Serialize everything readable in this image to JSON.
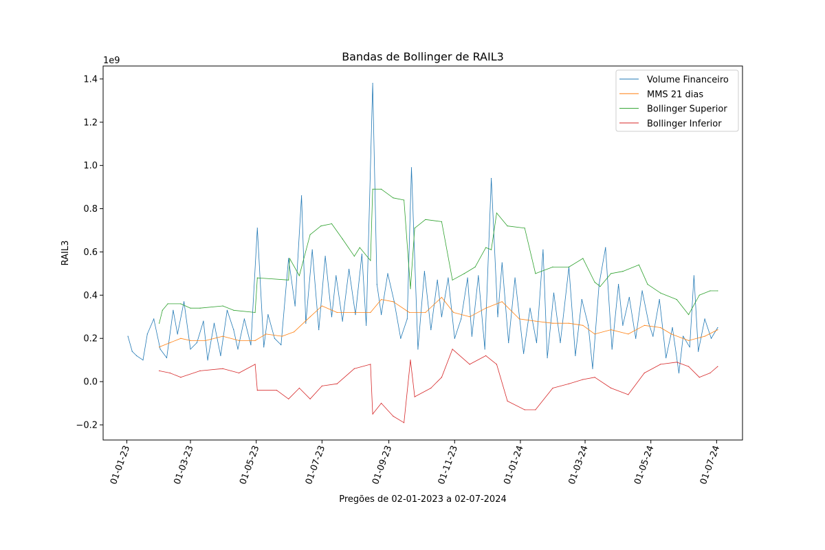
{
  "chart_data": {
    "type": "line",
    "title": "Bandas de Bollinger de RAIL3",
    "xlabel": "Pregões de 02-01-2023 a 02-07-2024",
    "ylabel": "RAIL3",
    "y_offset_label": "1e9",
    "y_multiplier": 1000000000,
    "x_start": "2023-01-02",
    "x_end": "2024-07-02",
    "xlim": [
      "2022-12-10",
      "2024-07-25"
    ],
    "ylim": [
      -0.27,
      1.46
    ],
    "y_ticks": [
      -0.2,
      0.0,
      0.2,
      0.4,
      0.6,
      0.8,
      1.0,
      1.2,
      1.4
    ],
    "y_tick_labels": [
      "−0.2",
      "0.0",
      "0.2",
      "0.4",
      "0.6",
      "0.8",
      "1.0",
      "1.2",
      "1.4"
    ],
    "x_ticks": [
      "2023-01-01",
      "2023-03-01",
      "2023-05-01",
      "2023-07-01",
      "2023-09-01",
      "2023-11-01",
      "2024-01-01",
      "2024-03-01",
      "2024-05-01",
      "2024-07-01"
    ],
    "x_tick_labels": [
      "01-01-23",
      "01-03-23",
      "01-05-23",
      "01-07-23",
      "01-09-23",
      "01-11-23",
      "01-01-24",
      "01-03-24",
      "01-05-24",
      "01-07-24"
    ],
    "legend_position": "top-right",
    "grid": false,
    "series": [
      {
        "name": "Volume Financeiro",
        "color": "#1f77b4",
        "points": [
          [
            "2023-01-02",
            0.21
          ],
          [
            "2023-01-06",
            0.14
          ],
          [
            "2023-01-10",
            0.12
          ],
          [
            "2023-01-16",
            0.1
          ],
          [
            "2023-01-20",
            0.22
          ],
          [
            "2023-01-26",
            0.29
          ],
          [
            "2023-02-01",
            0.15
          ],
          [
            "2023-02-07",
            0.11
          ],
          [
            "2023-02-13",
            0.33
          ],
          [
            "2023-02-17",
            0.22
          ],
          [
            "2023-02-23",
            0.37
          ],
          [
            "2023-03-01",
            0.15
          ],
          [
            "2023-03-07",
            0.18
          ],
          [
            "2023-03-13",
            0.28
          ],
          [
            "2023-03-17",
            0.1
          ],
          [
            "2023-03-23",
            0.27
          ],
          [
            "2023-03-29",
            0.12
          ],
          [
            "2023-04-04",
            0.33
          ],
          [
            "2023-04-10",
            0.24
          ],
          [
            "2023-04-14",
            0.15
          ],
          [
            "2023-04-20",
            0.29
          ],
          [
            "2023-04-26",
            0.17
          ],
          [
            "2023-05-02",
            0.71
          ],
          [
            "2023-05-08",
            0.16
          ],
          [
            "2023-05-12",
            0.31
          ],
          [
            "2023-05-18",
            0.2
          ],
          [
            "2023-05-24",
            0.17
          ],
          [
            "2023-05-31",
            0.57
          ],
          [
            "2023-06-06",
            0.35
          ],
          [
            "2023-06-12",
            0.86
          ],
          [
            "2023-06-16",
            0.27
          ],
          [
            "2023-06-22",
            0.61
          ],
          [
            "2023-06-28",
            0.24
          ],
          [
            "2023-07-04",
            0.58
          ],
          [
            "2023-07-10",
            0.3
          ],
          [
            "2023-07-14",
            0.49
          ],
          [
            "2023-07-20",
            0.28
          ],
          [
            "2023-07-26",
            0.52
          ],
          [
            "2023-08-01",
            0.31
          ],
          [
            "2023-08-07",
            0.59
          ],
          [
            "2023-08-11",
            0.26
          ],
          [
            "2023-08-17",
            1.38
          ],
          [
            "2023-08-21",
            0.45
          ],
          [
            "2023-08-25",
            0.31
          ],
          [
            "2023-08-31",
            0.5
          ],
          [
            "2023-09-06",
            0.37
          ],
          [
            "2023-09-12",
            0.2
          ],
          [
            "2023-09-18",
            0.29
          ],
          [
            "2023-09-22",
            0.99
          ],
          [
            "2023-09-28",
            0.15
          ],
          [
            "2023-10-04",
            0.51
          ],
          [
            "2023-10-10",
            0.24
          ],
          [
            "2023-10-16",
            0.47
          ],
          [
            "2023-10-20",
            0.3
          ],
          [
            "2023-10-26",
            0.48
          ],
          [
            "2023-11-01",
            0.2
          ],
          [
            "2023-11-07",
            0.29
          ],
          [
            "2023-11-13",
            0.48
          ],
          [
            "2023-11-17",
            0.21
          ],
          [
            "2023-11-23",
            0.49
          ],
          [
            "2023-11-29",
            0.15
          ],
          [
            "2023-12-05",
            0.94
          ],
          [
            "2023-12-11",
            0.3
          ],
          [
            "2023-12-15",
            0.55
          ],
          [
            "2023-12-21",
            0.18
          ],
          [
            "2023-12-27",
            0.48
          ],
          [
            "2024-01-04",
            0.13
          ],
          [
            "2024-01-10",
            0.34
          ],
          [
            "2024-01-16",
            0.18
          ],
          [
            "2024-01-22",
            0.61
          ],
          [
            "2024-01-26",
            0.11
          ],
          [
            "2024-02-01",
            0.41
          ],
          [
            "2024-02-07",
            0.18
          ],
          [
            "2024-02-15",
            0.53
          ],
          [
            "2024-02-21",
            0.12
          ],
          [
            "2024-02-27",
            0.38
          ],
          [
            "2024-03-04",
            0.26
          ],
          [
            "2024-03-08",
            0.06
          ],
          [
            "2024-03-14",
            0.45
          ],
          [
            "2024-03-20",
            0.62
          ],
          [
            "2024-03-26",
            0.15
          ],
          [
            "2024-04-01",
            0.45
          ],
          [
            "2024-04-05",
            0.26
          ],
          [
            "2024-04-11",
            0.39
          ],
          [
            "2024-04-17",
            0.2
          ],
          [
            "2024-04-23",
            0.42
          ],
          [
            "2024-04-29",
            0.27
          ],
          [
            "2024-05-03",
            0.21
          ],
          [
            "2024-05-09",
            0.38
          ],
          [
            "2024-05-15",
            0.11
          ],
          [
            "2024-05-21",
            0.25
          ],
          [
            "2024-05-27",
            0.04
          ],
          [
            "2024-05-31",
            0.21
          ],
          [
            "2024-06-06",
            0.16
          ],
          [
            "2024-06-10",
            0.49
          ],
          [
            "2024-06-14",
            0.14
          ],
          [
            "2024-06-20",
            0.29
          ],
          [
            "2024-06-26",
            0.2
          ],
          [
            "2024-07-02",
            0.25
          ]
        ]
      },
      {
        "name": "MMS 21 dias",
        "color": "#ff7f0e",
        "points": [
          [
            "2023-01-31",
            0.16
          ],
          [
            "2023-02-10",
            0.18
          ],
          [
            "2023-02-20",
            0.2
          ],
          [
            "2023-03-01",
            0.19
          ],
          [
            "2023-03-15",
            0.19
          ],
          [
            "2023-03-31",
            0.21
          ],
          [
            "2023-04-15",
            0.19
          ],
          [
            "2023-04-30",
            0.19
          ],
          [
            "2023-05-10",
            0.22
          ],
          [
            "2023-05-25",
            0.21
          ],
          [
            "2023-06-05",
            0.23
          ],
          [
            "2023-06-20",
            0.3
          ],
          [
            "2023-07-01",
            0.35
          ],
          [
            "2023-07-15",
            0.32
          ],
          [
            "2023-07-31",
            0.32
          ],
          [
            "2023-08-15",
            0.32
          ],
          [
            "2023-08-25",
            0.38
          ],
          [
            "2023-09-05",
            0.37
          ],
          [
            "2023-09-20",
            0.32
          ],
          [
            "2023-10-05",
            0.32
          ],
          [
            "2023-10-20",
            0.39
          ],
          [
            "2023-10-31",
            0.32
          ],
          [
            "2023-11-15",
            0.3
          ],
          [
            "2023-11-30",
            0.34
          ],
          [
            "2023-12-15",
            0.37
          ],
          [
            "2023-12-31",
            0.29
          ],
          [
            "2024-01-15",
            0.28
          ],
          [
            "2024-01-31",
            0.27
          ],
          [
            "2024-02-15",
            0.27
          ],
          [
            "2024-02-28",
            0.26
          ],
          [
            "2024-03-10",
            0.22
          ],
          [
            "2024-03-25",
            0.24
          ],
          [
            "2024-04-10",
            0.22
          ],
          [
            "2024-04-25",
            0.26
          ],
          [
            "2024-05-10",
            0.25
          ],
          [
            "2024-05-20",
            0.22
          ],
          [
            "2024-06-05",
            0.19
          ],
          [
            "2024-06-20",
            0.21
          ],
          [
            "2024-07-02",
            0.24
          ]
        ]
      },
      {
        "name": "Bollinger Superior",
        "color": "#2ca02c",
        "points": [
          [
            "2023-01-31",
            0.27
          ],
          [
            "2023-02-03",
            0.33
          ],
          [
            "2023-02-08",
            0.36
          ],
          [
            "2023-02-20",
            0.36
          ],
          [
            "2023-03-01",
            0.34
          ],
          [
            "2023-03-10",
            0.34
          ],
          [
            "2023-03-31",
            0.35
          ],
          [
            "2023-04-10",
            0.33
          ],
          [
            "2023-04-30",
            0.32
          ],
          [
            "2023-05-02",
            0.48
          ],
          [
            "2023-05-31",
            0.47
          ],
          [
            "2023-06-01",
            0.57
          ],
          [
            "2023-06-10",
            0.49
          ],
          [
            "2023-06-20",
            0.68
          ],
          [
            "2023-06-30",
            0.72
          ],
          [
            "2023-07-10",
            0.73
          ],
          [
            "2023-07-20",
            0.66
          ],
          [
            "2023-07-31",
            0.58
          ],
          [
            "2023-08-05",
            0.62
          ],
          [
            "2023-08-15",
            0.56
          ],
          [
            "2023-08-17",
            0.89
          ],
          [
            "2023-08-25",
            0.89
          ],
          [
            "2023-09-05",
            0.85
          ],
          [
            "2023-09-15",
            0.84
          ],
          [
            "2023-09-21",
            0.43
          ],
          [
            "2023-09-25",
            0.71
          ],
          [
            "2023-10-05",
            0.75
          ],
          [
            "2023-10-20",
            0.74
          ],
          [
            "2023-10-30",
            0.47
          ],
          [
            "2023-11-10",
            0.5
          ],
          [
            "2023-11-20",
            0.53
          ],
          [
            "2023-11-30",
            0.62
          ],
          [
            "2023-12-05",
            0.61
          ],
          [
            "2023-12-10",
            0.78
          ],
          [
            "2023-12-20",
            0.72
          ],
          [
            "2024-01-05",
            0.71
          ],
          [
            "2024-01-15",
            0.5
          ],
          [
            "2024-01-31",
            0.53
          ],
          [
            "2024-02-15",
            0.53
          ],
          [
            "2024-02-28",
            0.57
          ],
          [
            "2024-03-10",
            0.46
          ],
          [
            "2024-03-15",
            0.44
          ],
          [
            "2024-03-25",
            0.5
          ],
          [
            "2024-04-05",
            0.51
          ],
          [
            "2024-04-20",
            0.54
          ],
          [
            "2024-04-28",
            0.45
          ],
          [
            "2024-05-10",
            0.41
          ],
          [
            "2024-05-25",
            0.38
          ],
          [
            "2024-06-05",
            0.31
          ],
          [
            "2024-06-15",
            0.4
          ],
          [
            "2024-06-25",
            0.42
          ],
          [
            "2024-07-02",
            0.42
          ]
        ]
      },
      {
        "name": "Bollinger Inferior",
        "color": "#d62728",
        "points": [
          [
            "2023-01-31",
            0.05
          ],
          [
            "2023-02-10",
            0.04
          ],
          [
            "2023-02-20",
            0.02
          ],
          [
            "2023-03-10",
            0.05
          ],
          [
            "2023-03-31",
            0.06
          ],
          [
            "2023-04-15",
            0.04
          ],
          [
            "2023-04-30",
            0.08
          ],
          [
            "2023-05-02",
            -0.04
          ],
          [
            "2023-05-20",
            -0.04
          ],
          [
            "2023-05-31",
            -0.08
          ],
          [
            "2023-06-10",
            -0.03
          ],
          [
            "2023-06-20",
            -0.08
          ],
          [
            "2023-07-01",
            -0.02
          ],
          [
            "2023-07-15",
            -0.01
          ],
          [
            "2023-07-31",
            0.06
          ],
          [
            "2023-08-15",
            0.08
          ],
          [
            "2023-08-17",
            -0.15
          ],
          [
            "2023-08-25",
            -0.1
          ],
          [
            "2023-09-05",
            -0.16
          ],
          [
            "2023-09-15",
            -0.19
          ],
          [
            "2023-09-21",
            0.1
          ],
          [
            "2023-09-25",
            -0.07
          ],
          [
            "2023-10-10",
            -0.03
          ],
          [
            "2023-10-20",
            0.02
          ],
          [
            "2023-10-30",
            0.15
          ],
          [
            "2023-11-15",
            0.08
          ],
          [
            "2023-11-30",
            0.12
          ],
          [
            "2023-12-10",
            0.08
          ],
          [
            "2023-12-20",
            -0.09
          ],
          [
            "2024-01-05",
            -0.13
          ],
          [
            "2024-01-15",
            -0.13
          ],
          [
            "2024-01-31",
            -0.03
          ],
          [
            "2024-02-15",
            -0.01
          ],
          [
            "2024-02-28",
            0.01
          ],
          [
            "2024-03-10",
            0.02
          ],
          [
            "2024-03-25",
            -0.03
          ],
          [
            "2024-04-10",
            -0.06
          ],
          [
            "2024-04-25",
            0.04
          ],
          [
            "2024-05-10",
            0.08
          ],
          [
            "2024-05-25",
            0.09
          ],
          [
            "2024-06-05",
            0.07
          ],
          [
            "2024-06-15",
            0.02
          ],
          [
            "2024-06-25",
            0.04
          ],
          [
            "2024-07-02",
            0.07
          ]
        ]
      }
    ]
  }
}
